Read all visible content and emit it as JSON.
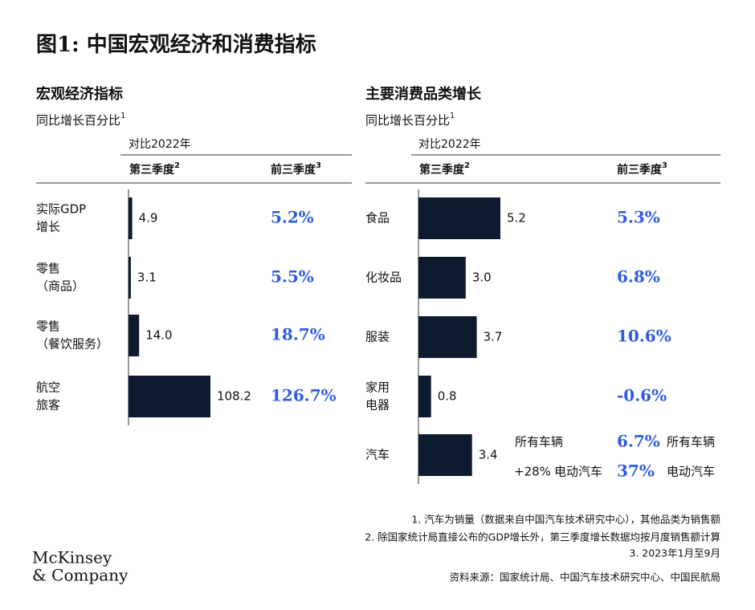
{
  "title": "图1: 中国宏观经济和消费指标",
  "chart_data": [
    {
      "type": "hbar",
      "title": "宏观经济指标",
      "subtitle": "同比增长百分比",
      "subtitle_note": "1",
      "compare": "对比2022年",
      "col1": "第三季度",
      "col1_note": "2",
      "col2": "前三季度",
      "col2_note": "3",
      "categories": [
        [
          "实际GDP",
          "增长"
        ],
        [
          "零售",
          "（商品）"
        ],
        [
          "零售",
          "（餐饮服务）"
        ],
        [
          "航空",
          "旅客"
        ]
      ],
      "values": [
        4.9,
        3.1,
        14.0,
        108.2
      ],
      "value_labels": [
        "4.9",
        "3.1",
        "14.0",
        "108.2"
      ],
      "ytd_labels": [
        "5.2%",
        "5.5%",
        "18.7%",
        "126.7%"
      ],
      "color": "#0e1b2e",
      "ytd_color": "#2f5be0"
    },
    {
      "type": "hbar",
      "title": "主要消费品类增长",
      "subtitle": "同比增长百分比",
      "subtitle_note": "1",
      "compare": "对比2022年",
      "col1": "第三季度",
      "col1_note": "2",
      "col2": "前三季度",
      "col2_note": "3",
      "categories": [
        [
          "食品"
        ],
        [
          "化妆品"
        ],
        [
          "服装"
        ],
        [
          "家用",
          "电器"
        ],
        [
          "汽车"
        ]
      ],
      "values": [
        5.2,
        3.0,
        3.7,
        0.8,
        3.4
      ],
      "value_labels": [
        "5.2",
        "3.0",
        "3.7",
        "0.8",
        "3.4"
      ],
      "ytd_labels": [
        "5.3%",
        "6.8%",
        "10.6%",
        "-0.6%",
        "6.7%"
      ],
      "all_vehicles": "所有车辆",
      "ev": "电动汽车",
      "ev_q3": "+28%",
      "ev_ytd": "37%",
      "color": "#0e1b2e",
      "ytd_color": "#2f5be0"
    }
  ],
  "footnotes": [
    "1.  汽车为销量（数据来自中国汽车技术研究中心），其他品类为销售额",
    "2.  除国家统计局直接公布的GDP增长外，第三季度增长数据均按月度销售额计算",
    "3.  2023年1月至9月"
  ],
  "source": "资料来源：国家统计局、中国汽车技术研究中心、中国民航局",
  "logo": [
    "McKinsey",
    "& Company"
  ]
}
